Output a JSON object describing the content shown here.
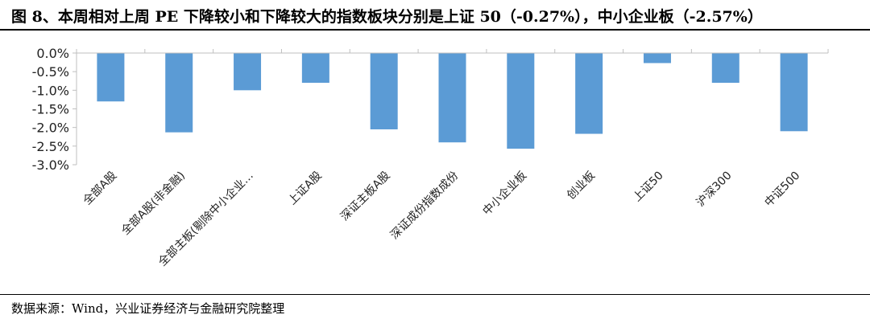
{
  "header": {
    "title": "图 8、本周相对上周 PE 下降较小和下降较大的指数板块分别是上证 50（-0.27%），中小企业板（-2.57%）"
  },
  "footer": {
    "source": "数据来源：Wind，兴业证券经济与金融研究院整理"
  },
  "chart_data": {
    "type": "bar",
    "title": "",
    "xlabel": "",
    "ylabel": "",
    "categories": [
      "全部A股",
      "全部A股(非金融)",
      "全部主板(剔除中小企业…",
      "上证A股",
      "深证主板A股",
      "深证成份指数成份",
      "中小企业板",
      "创业板",
      "上证50",
      "沪深300",
      "中证500"
    ],
    "values": [
      -1.3,
      -2.13,
      -1.0,
      -0.8,
      -2.05,
      -2.4,
      -2.57,
      -2.17,
      -0.27,
      -0.8,
      -2.1
    ],
    "ylim": [
      -3.0,
      0.0
    ],
    "yticks": [
      0.0,
      -0.5,
      -1.0,
      -1.5,
      -2.0,
      -2.5,
      -3.0
    ],
    "ytick_labels": [
      "0.0%",
      "-0.5%",
      "-1.0%",
      "-1.5%",
      "-2.0%",
      "-2.5%",
      "-3.0%"
    ],
    "grid": false,
    "legend": "none",
    "bar_color": "#5b9bd5",
    "axis_color": "#bfbfbf"
  }
}
